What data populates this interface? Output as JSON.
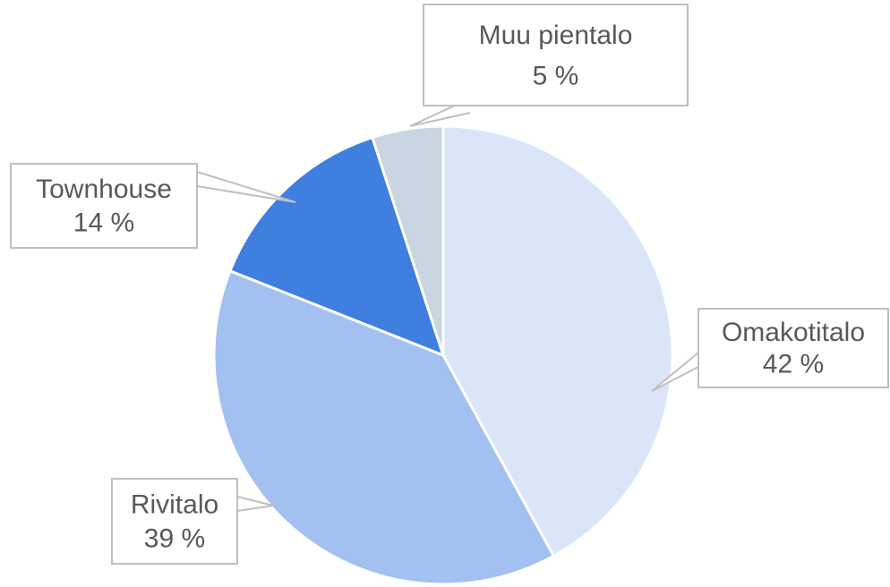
{
  "chart_data": {
    "type": "pie",
    "categories": [
      "Omakotitalo",
      "Rivitalo",
      "Townhouse",
      "Muu pientalo"
    ],
    "values": [
      42,
      39,
      14,
      5
    ],
    "value_labels": [
      "42 %",
      "39 %",
      "14 %",
      "5 %"
    ],
    "colors": [
      "#dae6f8",
      "#a3c1f0",
      "#3f7fe0",
      "#c9d5e1"
    ]
  }
}
